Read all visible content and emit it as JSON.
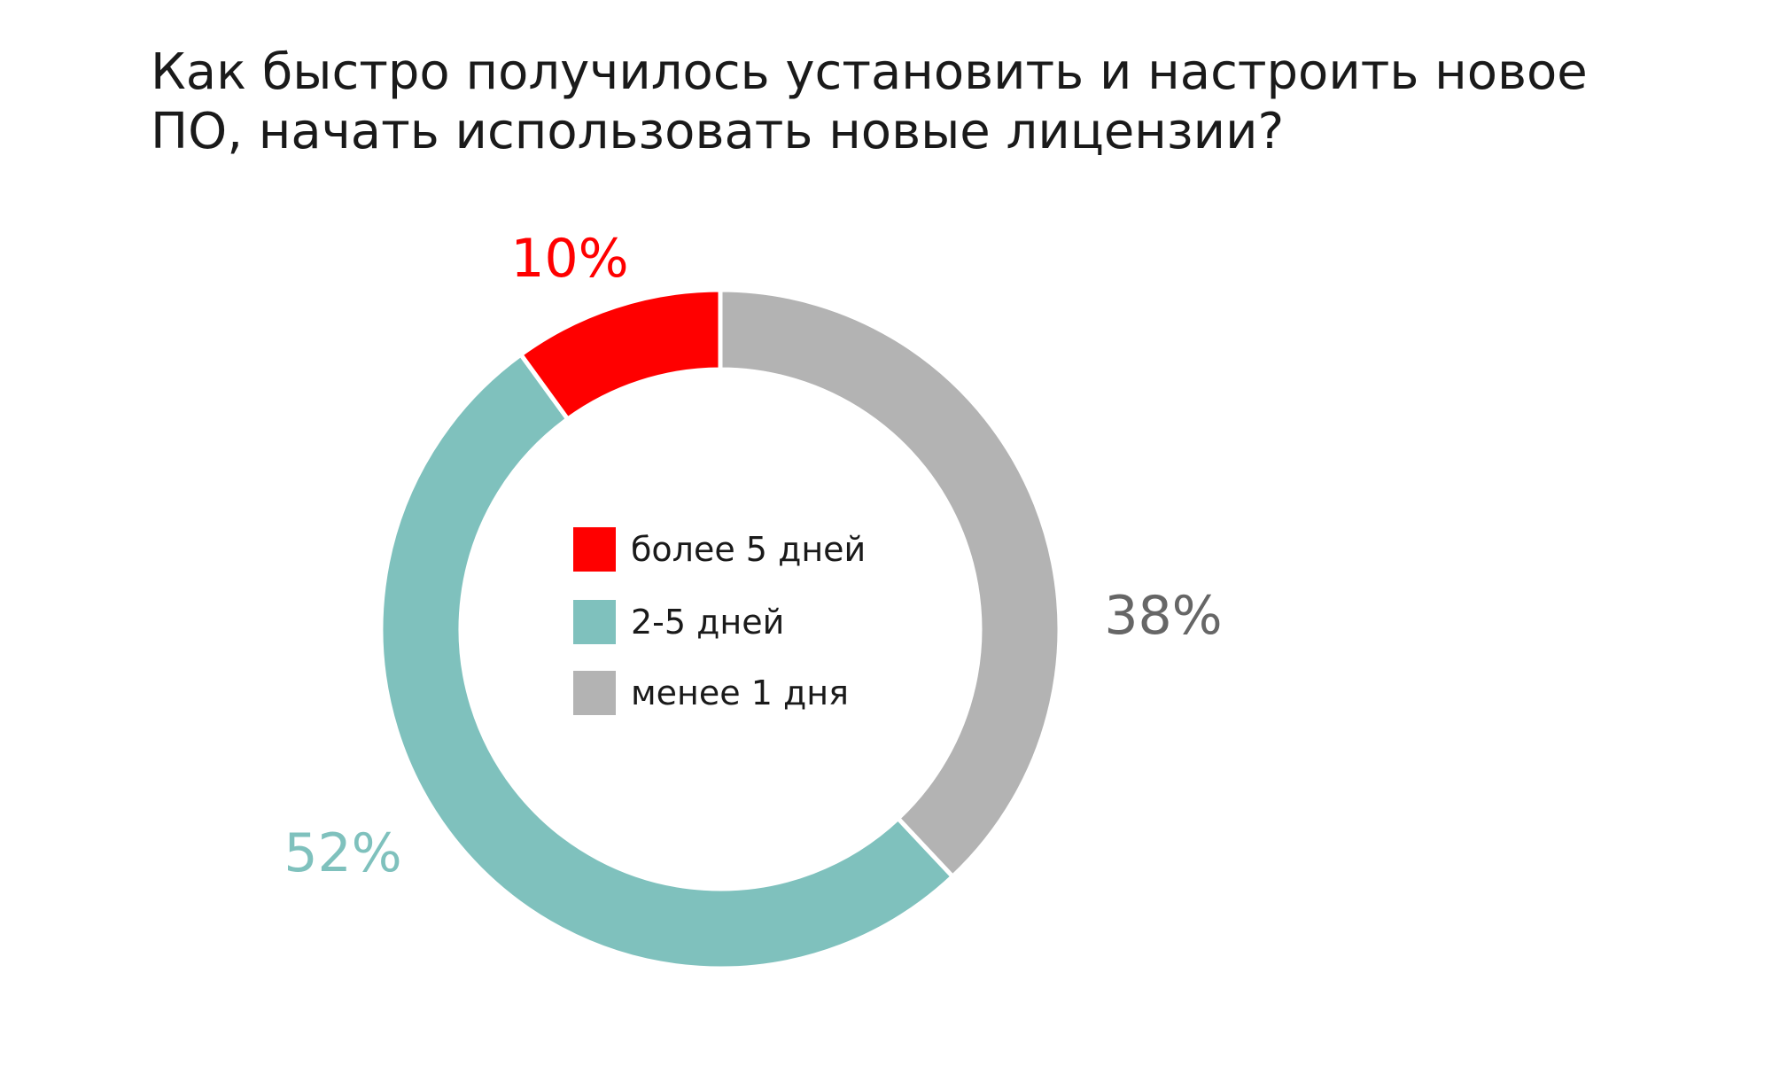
{
  "chart_data": {
    "type": "pie",
    "title": "Как быстро получилось установить и настроить новое ПО, начать использовать новые лицензии?",
    "legend_position": "center",
    "series": [
      {
        "name": "более 5 дней",
        "value": 10,
        "label": "10%",
        "color": "#ff0000"
      },
      {
        "name": "2-5 дней",
        "value": 52,
        "label": "52%",
        "color": "#7fc1bd"
      },
      {
        "name": "менее 1 дня",
        "value": 38,
        "label": "38%",
        "color": "#b3b3b3"
      }
    ],
    "label_colors": {
      "более 5 дней": "#ff0000",
      "2-5 дней": "#7fc1bd",
      "менее 1 дня": "#666666"
    }
  }
}
